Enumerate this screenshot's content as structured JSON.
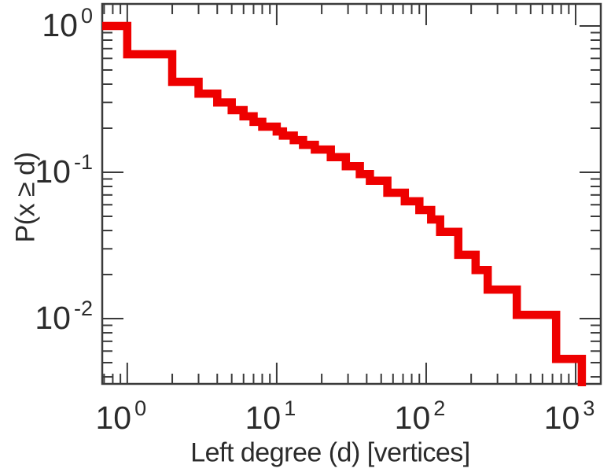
{
  "chart_data": {
    "type": "line",
    "subtype": "ccdf-step",
    "title": "",
    "xlabel": "Left degree (d) [vertices]",
    "ylabel": "P(x ≥ d)",
    "x_scale": "log",
    "y_scale": "log",
    "x_range": [
      0.68,
      1473
    ],
    "y_range": [
      0.00358,
      1.414
    ],
    "grid": false,
    "legend": false,
    "series_color": "#ee0000",
    "axis_color": "#3a3a3a",
    "text_color": "#2b2b2b",
    "start_value": 1.0,
    "points": [
      [
        1,
        0.64
      ],
      [
        2,
        0.415
      ],
      [
        3,
        0.345
      ],
      [
        4,
        0.3
      ],
      [
        5,
        0.266
      ],
      [
        6,
        0.241
      ],
      [
        7,
        0.221
      ],
      [
        8,
        0.205
      ],
      [
        10,
        0.19
      ],
      [
        11,
        0.178
      ],
      [
        13,
        0.166
      ],
      [
        15,
        0.154
      ],
      [
        18,
        0.143
      ],
      [
        23,
        0.127
      ],
      [
        29,
        0.11
      ],
      [
        36,
        0.0973
      ],
      [
        42,
        0.0875
      ],
      [
        55,
        0.0725
      ],
      [
        72,
        0.0633
      ],
      [
        90,
        0.0552
      ],
      [
        108,
        0.0476
      ],
      [
        124,
        0.0392
      ],
      [
        164,
        0.0273
      ],
      [
        214,
        0.0215
      ],
      [
        258,
        0.0158
      ],
      [
        404,
        0.0106
      ],
      [
        740,
        0.0053
      ],
      [
        1100,
        0.002
      ]
    ],
    "x_ticks": [
      {
        "mantissa": "10",
        "exponent": "0",
        "value": 1
      },
      {
        "mantissa": "10",
        "exponent": "1",
        "value": 10
      },
      {
        "mantissa": "10",
        "exponent": "2",
        "value": 100
      },
      {
        "mantissa": "10",
        "exponent": "3",
        "value": 1000
      }
    ],
    "y_ticks": [
      {
        "mantissa": "10",
        "exponent": "0",
        "value": 1
      },
      {
        "mantissa": "10",
        "exponent": "-1",
        "value": 0.1
      },
      {
        "mantissa": "10",
        "exponent": "-2",
        "value": 0.01
      }
    ]
  }
}
